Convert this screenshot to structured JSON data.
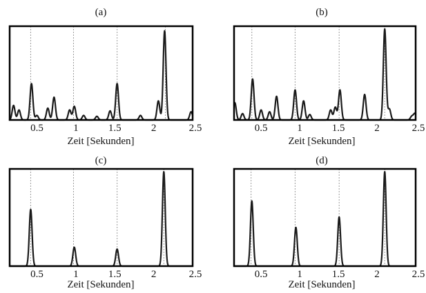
{
  "chart_data": [
    {
      "type": "line",
      "title": "(a)",
      "xlabel": "Zeit [Sekunden]",
      "xlim": [
        0.15,
        2.5
      ],
      "ylim": [
        0,
        1
      ],
      "xticks": [
        "0.5",
        "1",
        "1.5",
        "2",
        "2.5"
      ],
      "markers": [
        0.42,
        0.97,
        1.53,
        2.15
      ],
      "peaks": [
        {
          "x": 0.2,
          "y": 0.16
        },
        {
          "x": 0.27,
          "y": 0.11
        },
        {
          "x": 0.43,
          "y": 0.4
        },
        {
          "x": 0.5,
          "y": 0.05
        },
        {
          "x": 0.64,
          "y": 0.13
        },
        {
          "x": 0.72,
          "y": 0.25
        },
        {
          "x": 0.92,
          "y": 0.11
        },
        {
          "x": 0.98,
          "y": 0.15
        },
        {
          "x": 1.1,
          "y": 0.05
        },
        {
          "x": 1.27,
          "y": 0.04
        },
        {
          "x": 1.44,
          "y": 0.1
        },
        {
          "x": 1.53,
          "y": 0.4
        },
        {
          "x": 1.83,
          "y": 0.05
        },
        {
          "x": 2.06,
          "y": 0.21
        },
        {
          "x": 2.14,
          "y": 0.98
        },
        {
          "x": 2.48,
          "y": 0.09
        }
      ]
    },
    {
      "type": "line",
      "title": "(b)",
      "xlabel": "Zeit [Sekunden]",
      "xlim": [
        0.15,
        2.5
      ],
      "ylim": [
        0,
        1
      ],
      "xticks": [
        "0.5",
        "1",
        "1.5",
        "2",
        "2.5"
      ],
      "markers": [
        0.38,
        0.94,
        1.51,
        2.1
      ],
      "peaks": [
        {
          "x": 0.16,
          "y": 0.19
        },
        {
          "x": 0.26,
          "y": 0.07
        },
        {
          "x": 0.39,
          "y": 0.45
        },
        {
          "x": 0.5,
          "y": 0.11
        },
        {
          "x": 0.61,
          "y": 0.09
        },
        {
          "x": 0.7,
          "y": 0.26
        },
        {
          "x": 0.94,
          "y": 0.33
        },
        {
          "x": 1.05,
          "y": 0.21
        },
        {
          "x": 1.13,
          "y": 0.06
        },
        {
          "x": 1.4,
          "y": 0.11
        },
        {
          "x": 1.46,
          "y": 0.14
        },
        {
          "x": 1.52,
          "y": 0.33
        },
        {
          "x": 1.84,
          "y": 0.28
        },
        {
          "x": 2.1,
          "y": 1.0
        },
        {
          "x": 2.16,
          "y": 0.12
        },
        {
          "x": 2.45,
          "y": 0.04
        },
        {
          "x": 2.49,
          "y": 0.07
        }
      ]
    },
    {
      "type": "line",
      "title": "(c)",
      "xlabel": "Zeit [Sekunden]",
      "xlim": [
        0.15,
        2.5
      ],
      "ylim": [
        0,
        1
      ],
      "xticks": [
        "0.5",
        "1",
        "1.5",
        "2",
        "2.5"
      ],
      "markers": [
        0.42,
        0.97,
        1.53,
        2.13
      ],
      "peaks": [
        {
          "x": 0.42,
          "y": 0.6
        },
        {
          "x": 0.98,
          "y": 0.2
        },
        {
          "x": 1.53,
          "y": 0.18
        },
        {
          "x": 2.13,
          "y": 1.0
        }
      ]
    },
    {
      "type": "line",
      "title": "(d)",
      "xlabel": "Zeit [Sekunden]",
      "xlim": [
        0.15,
        2.5
      ],
      "ylim": [
        0,
        1
      ],
      "xticks": [
        "0.5",
        "1",
        "1.5",
        "2",
        "2.5"
      ],
      "markers": [
        0.37,
        0.94,
        1.51,
        2.1
      ],
      "peaks": [
        {
          "x": 0.38,
          "y": 0.69
        },
        {
          "x": 0.95,
          "y": 0.41
        },
        {
          "x": 1.51,
          "y": 0.52
        },
        {
          "x": 2.1,
          "y": 1.0
        }
      ]
    }
  ]
}
